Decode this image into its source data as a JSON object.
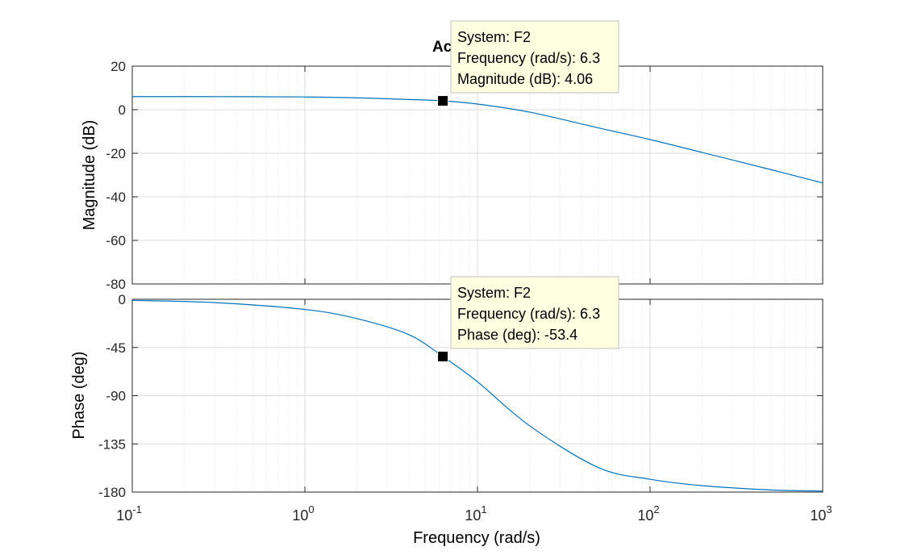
{
  "chart_data": {
    "type": "line",
    "title": "Ac",
    "xlabel": "Frequency  (rad/s)",
    "x_scale": "log",
    "xlim": [
      0.1,
      1000
    ],
    "x_ticks": [
      {
        "base": "10",
        "exp": "-1"
      },
      {
        "base": "10",
        "exp": "0"
      },
      {
        "base": "10",
        "exp": "1"
      },
      {
        "base": "10",
        "exp": "2"
      },
      {
        "base": "10",
        "exp": "3"
      }
    ],
    "grid": true,
    "line_color": "#0072BD",
    "panels": [
      {
        "ylabel": "Magnitude (dB)",
        "ylim": [
          -80,
          20
        ],
        "yticks": [
          "20",
          "0",
          "-20",
          "-40",
          "-60",
          "-80"
        ],
        "ytick_values": [
          20,
          0,
          -20,
          -40,
          -60,
          -80
        ],
        "series": [
          {
            "x": [
              0.1,
              0.3,
              1,
              2,
              4,
              6.3,
              10,
              20,
              50,
              100,
              200,
              500,
              1000
            ],
            "values": [
              6.02,
              6.0,
              5.85,
              5.46,
              4.69,
              4.06,
              2.6,
              -1.1,
              -8.3,
              -13.7,
              -19.6,
              -27.5,
              -33.6
            ]
          }
        ],
        "datatip": {
          "system": "System: F2",
          "frequency": "Frequency (rad/s): 6.3",
          "value": "Magnitude (dB): 4.06",
          "x": 6.3,
          "y": 4.06
        }
      },
      {
        "ylabel": "Phase (deg)",
        "ylim": [
          -180,
          0
        ],
        "yticks": [
          "0",
          "-45",
          "-90",
          "-135",
          "-180"
        ],
        "ytick_values": [
          0,
          -45,
          -90,
          -135,
          -180
        ],
        "series": [
          {
            "x": [
              0.1,
              0.3,
              1,
              2,
              4,
              6.3,
              10,
              20,
              50,
              100,
              200,
              500,
              1000
            ],
            "values": [
              -1,
              -3.1,
              -9.5,
              -18,
              -33,
              -53.4,
              -77,
              -118,
              -157,
              -168,
              -174,
              -178,
              -179
            ]
          }
        ],
        "datatip": {
          "system": "System: F2",
          "frequency": "Frequency (rad/s): 6.3",
          "value": "Phase (deg): -53.4",
          "x": 6.3,
          "y": -53.4
        }
      }
    ]
  }
}
